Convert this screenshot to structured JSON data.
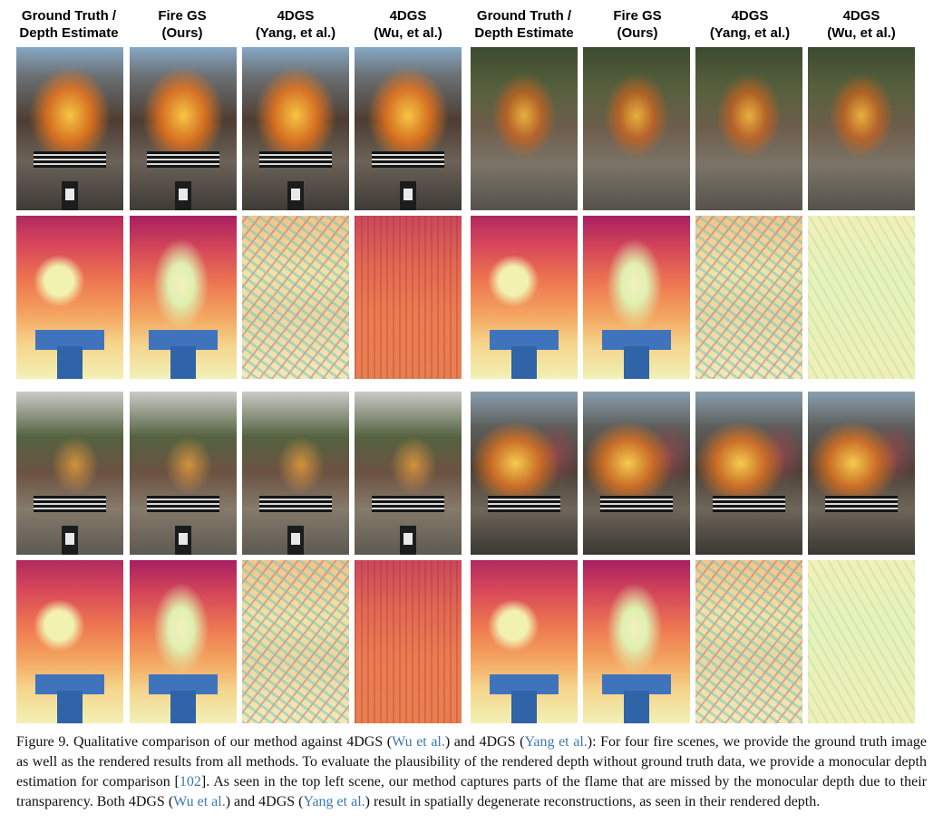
{
  "column_headers": [
    {
      "line1": "Ground Truth /",
      "line2": "Depth Estimate"
    },
    {
      "line1": "Fire GS",
      "line2": "(Ours)"
    },
    {
      "line1": "4DGS",
      "line2": "(Yang, et al.)"
    },
    {
      "line1": "4DGS",
      "line2": "(Wu, et al.)"
    },
    {
      "line1": "Ground Truth /",
      "line2": "Depth Estimate"
    },
    {
      "line1": "Fire GS",
      "line2": "(Ours)"
    },
    {
      "line1": "4DGS",
      "line2": "(Yang, et al.)"
    },
    {
      "line1": "4DGS",
      "line2": "(Wu, et al.)"
    }
  ],
  "caption": {
    "label": "Figure 9.",
    "t1": " Qualitative comparison of our method against 4DGS (",
    "c1": "Wu et al.",
    "t2": ") and 4DGS (",
    "c2": "Yang et al.",
    "t3": "): For four fire scenes, we provide the ground truth image as well as the rendered results from all methods. To evaluate the plausibility of the rendered depth without ground truth data, we provide a monocular depth estimation for comparison [",
    "c3": "102",
    "t4": "]. As seen in the top left scene, our method captures parts of the flame that are missed by the monocular depth due to their transparency. Both 4DGS (",
    "c4": "Wu et al.",
    "t5": ") and 4DGS (",
    "c5": "Yang et al.",
    "t6": ") result in spatially degenerate reconstructions, as seen in their rendered depth."
  }
}
